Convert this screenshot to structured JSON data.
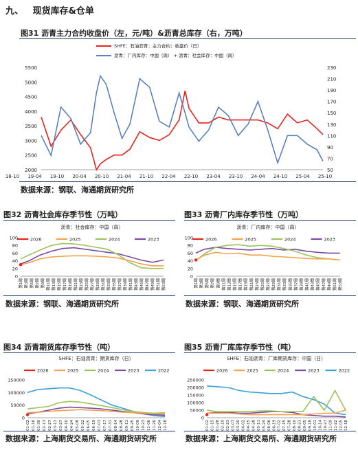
{
  "section": {
    "number": "九、",
    "title": "现货库存&仓单"
  },
  "figures": [
    {
      "caption": "图31  沥青主力合约收盘价（左，元/吨）&沥青总库存（右，万吨）",
      "source": "数据来源：钢联、海通期货研究所"
    },
    {
      "caption": "图32  沥青社会库存季节性（万吨）",
      "source": "数据来源：钢联、海通期货研究所"
    },
    {
      "caption": "图33  沥青厂内库存季节性（万吨）",
      "source": "数据来源：钢联、海通期货研究所"
    },
    {
      "caption": "图34  沥青期货库存季节性（吨）",
      "source": "数据来源：上海期货交易所、海通期货研究所"
    },
    {
      "caption": "图35  沥青厂库库存季节性（吨）",
      "source": "数据来源：上海期货交易所、海通期货研究所"
    }
  ],
  "colors": {
    "s2026": "#e8211c",
    "s2025": "#f5a04a",
    "s2024": "#9cc35a",
    "s2023": "#7a4aa0",
    "s2022": "#3aa0d8",
    "price": "#e8211c",
    "stock": "#5a82b8"
  },
  "chart_data": [
    {
      "id": "fig31",
      "type": "line",
      "legend": [
        "SHFE：石油沥青：主力合约：收盘价（日）",
        "沥青：厂内库存：中国（周）  + 沥青：社会库存：中国（周）"
      ],
      "x_ticks": [
        "18-10",
        "19-04",
        "19-10",
        "20-04",
        "20-10",
        "21-04",
        "21-10",
        "22-04",
        "22-10",
        "23-04",
        "23-10",
        "24-04",
        "24-10",
        "25-04",
        "25-10"
      ],
      "x": [
        2018.75,
        2019.0,
        2019.25,
        2019.5,
        2019.75,
        2020.0,
        2020.15,
        2020.25,
        2020.4,
        2020.6,
        2020.8,
        2021.0,
        2021.25,
        2021.5,
        2021.75,
        2022.0,
        2022.25,
        2022.4,
        2022.5,
        2022.75,
        2023.0,
        2023.25,
        2023.5,
        2023.75,
        2024.0,
        2024.25,
        2024.5,
        2024.75,
        2025.0,
        2025.25,
        2025.5,
        2025.75,
        2025.9
      ],
      "ylim_left": [
        2000,
        5500
      ],
      "yticks_left": [
        2000,
        2500,
        3000,
        3500,
        4000,
        4500,
        5000,
        5500
      ],
      "ylim_right": [
        50,
        230
      ],
      "yticks_right": [
        50,
        70,
        90,
        110,
        130,
        150,
        170,
        190,
        210,
        230
      ],
      "series": [
        {
          "name": "SHFE：石油沥青：主力合约：收盘价（日）",
          "axis": "left",
          "values": [
            3800,
            2800,
            3350,
            3700,
            3200,
            2750,
            2000,
            2200,
            2350,
            2500,
            2500,
            2700,
            3300,
            3100,
            3000,
            3200,
            3700,
            4700,
            4100,
            3600,
            3600,
            3800,
            3700,
            3700,
            3700,
            3700,
            3600,
            3400,
            3900,
            3600,
            3700,
            3400,
            3200
          ]
        },
        {
          "name": "沥青：厂内库存：中国（周）  + 沥青：社会库存：中国（周）",
          "axis": "right",
          "values": [
            110,
            75,
            160,
            140,
            95,
            115,
            185,
            215,
            200,
            150,
            105,
            130,
            210,
            195,
            135,
            125,
            185,
            150,
            125,
            100,
            120,
            160,
            145,
            110,
            130,
            170,
            120,
            62,
            110,
            110,
            95,
            85,
            65
          ]
        }
      ]
    },
    {
      "id": "fig32",
      "type": "line",
      "subtitle": "沥青：社会库存：中国（周）",
      "ylim": [
        0,
        100
      ],
      "yticks": [
        0,
        20,
        40,
        60,
        80,
        100
      ],
      "x_tick_labels": [
        "第1周",
        "第3周",
        "第5周",
        "第7周",
        "第9周",
        "第11周",
        "第13周",
        "第15周",
        "第17周",
        "第19周",
        "第21周",
        "第23周",
        "第25周",
        "第27周",
        "第29周",
        "第31周",
        "第33周",
        "第35周",
        "第37周",
        "第39周",
        "第41周",
        "第43周",
        "第45周",
        "第47周",
        "第49周",
        "第51周",
        "第53周"
      ],
      "x": [
        1,
        4,
        8,
        12,
        16,
        20,
        24,
        28,
        32,
        36,
        40,
        44,
        48,
        52
      ],
      "series": [
        {
          "name": "2026",
          "values": [
            30,
            null,
            null,
            null,
            null,
            null,
            null,
            null,
            null,
            null,
            null,
            null,
            null,
            null
          ]
        },
        {
          "name": "2025",
          "values": [
            30,
            35,
            45,
            50,
            52,
            53,
            53,
            52,
            50,
            47,
            40,
            32,
            27,
            27
          ]
        },
        {
          "name": "2024",
          "values": [
            45,
            55,
            68,
            80,
            85,
            84,
            80,
            75,
            70,
            55,
            35,
            22,
            20,
            20
          ]
        },
        {
          "name": "2023",
          "values": [
            32,
            40,
            55,
            65,
            72,
            74,
            70,
            66,
            62,
            58,
            50,
            42,
            36,
            42
          ]
        }
      ]
    },
    {
      "id": "fig33",
      "type": "line",
      "subtitle": "沥青：厂内库存：中国（周）",
      "ylim": [
        0,
        100
      ],
      "yticks": [
        0,
        20,
        40,
        60,
        80,
        100
      ],
      "x_tick_labels": [
        "第1周",
        "第3周",
        "第5周",
        "第7周",
        "第9周",
        "第11周",
        "第13周",
        "第15周",
        "第17周",
        "第19周",
        "第21周",
        "第23周",
        "第25周",
        "第27周",
        "第29周",
        "第31周",
        "第33周",
        "第35周",
        "第37周",
        "第39周",
        "第41周",
        "第43周",
        "第45周",
        "第47周",
        "第49周",
        "第51周",
        "第53周"
      ],
      "x": [
        1,
        4,
        8,
        12,
        16,
        20,
        24,
        28,
        32,
        36,
        40,
        44,
        48,
        52
      ],
      "series": [
        {
          "name": "2026",
          "values": [
            42,
            null,
            null,
            null,
            null,
            null,
            null,
            null,
            null,
            null,
            null,
            null,
            null,
            null
          ]
        },
        {
          "name": "2025",
          "values": [
            42,
            55,
            62,
            58,
            60,
            55,
            55,
            52,
            50,
            48,
            46,
            45,
            45,
            42
          ]
        },
        {
          "name": "2024",
          "values": [
            40,
            58,
            75,
            80,
            82,
            78,
            80,
            78,
            72,
            65,
            55,
            48,
            45,
            42
          ]
        },
        {
          "name": "2023",
          "values": [
            60,
            70,
            75,
            72,
            70,
            68,
            70,
            72,
            68,
            70,
            65,
            62,
            60,
            60
          ]
        }
      ]
    },
    {
      "id": "fig34",
      "type": "line",
      "subtitle": "SHFE：石油沥青：期货库存（日）",
      "ylim": [
        0,
        150000
      ],
      "yticks": [
        0,
        50000,
        100000,
        150000
      ],
      "x_tick_labels": [
        "01-02",
        "01-16",
        "01-30",
        "02-13",
        "02-27",
        "03-13",
        "03-27",
        "04-10",
        "04-24",
        "05-08",
        "05-22",
        "06-05",
        "06-19",
        "07-03",
        "07-17",
        "07-31",
        "08-14",
        "08-28",
        "09-11",
        "09-25",
        "10-09",
        "10-23",
        "11-06",
        "11-20",
        "12-04",
        "12-18"
      ],
      "x": [
        0,
        1,
        2,
        3,
        4,
        5,
        6,
        7,
        8,
        9,
        10,
        11,
        12,
        13
      ],
      "series": [
        {
          "name": "2026",
          "values": [
            12000,
            null,
            null,
            null,
            null,
            null,
            null,
            null,
            null,
            null,
            null,
            null,
            null,
            null
          ]
        },
        {
          "name": "2025",
          "values": [
            20000,
            22000,
            25000,
            28000,
            30000,
            32000,
            30000,
            28000,
            25000,
            22000,
            20000,
            18000,
            15000,
            15000
          ]
        },
        {
          "name": "2024",
          "values": [
            35000,
            40000,
            45000,
            60000,
            65000,
            62000,
            55000,
            48000,
            40000,
            32000,
            25000,
            20000,
            18000,
            20000
          ]
        },
        {
          "name": "2023",
          "values": [
            15000,
            22000,
            30000,
            38000,
            42000,
            40000,
            38000,
            35000,
            30000,
            25000,
            20000,
            15000,
            12000,
            10000
          ]
        },
        {
          "name": "2022",
          "values": [
            100000,
            112000,
            115000,
            118000,
            118000,
            108000,
            90000,
            70000,
            50000,
            38000,
            25000,
            15000,
            8000,
            5000
          ]
        }
      ]
    },
    {
      "id": "fig35",
      "type": "line",
      "subtitle": "SHFE：石油沥青：厂库期货库存：中国（日）",
      "ylim": [
        0,
        250000
      ],
      "yticks": [
        0,
        50000,
        100000,
        150000,
        200000,
        250000
      ],
      "x_tick_labels": [
        "01-02",
        "01-15",
        "01-28",
        "02-10",
        "02-23",
        "03-07",
        "03-20",
        "04-02",
        "04-15",
        "04-28",
        "05-11",
        "05-24",
        "06-06",
        "06-19",
        "07-02",
        "07-15",
        "07-28",
        "08-10",
        "08-23",
        "09-05",
        "09-18",
        "10-01",
        "10-14",
        "10-27",
        "11-09",
        "11-22",
        "12-05",
        "12-18"
      ],
      "x": [
        0,
        1,
        2,
        3,
        4,
        5,
        6,
        7,
        8,
        9,
        10,
        11,
        12,
        13
      ],
      "series": [
        {
          "name": "2026",
          "values": [
            20000,
            null,
            null,
            null,
            null,
            null,
            null,
            null,
            null,
            null,
            null,
            null,
            null,
            null
          ]
        },
        {
          "name": "2025",
          "values": [
            30000,
            30000,
            30000,
            25000,
            20000,
            20000,
            20000,
            20000,
            20000,
            20000,
            25000,
            30000,
            30000,
            50000
          ]
        },
        {
          "name": "2024",
          "values": [
            50000,
            40000,
            40000,
            40000,
            40000,
            45000,
            45000,
            40000,
            40000,
            40000,
            140000,
            50000,
            180000,
            50000
          ]
        },
        {
          "name": "2023",
          "values": [
            30000,
            35000,
            35000,
            30000,
            30000,
            35000,
            40000,
            40000,
            35000,
            20000,
            15000,
            10000,
            10000,
            5000
          ]
        },
        {
          "name": "2022",
          "values": [
            210000,
            205000,
            200000,
            180000,
            170000,
            165000,
            160000,
            160000,
            170000,
            140000,
            120000,
            90000,
            30000,
            20000
          ]
        }
      ]
    }
  ]
}
